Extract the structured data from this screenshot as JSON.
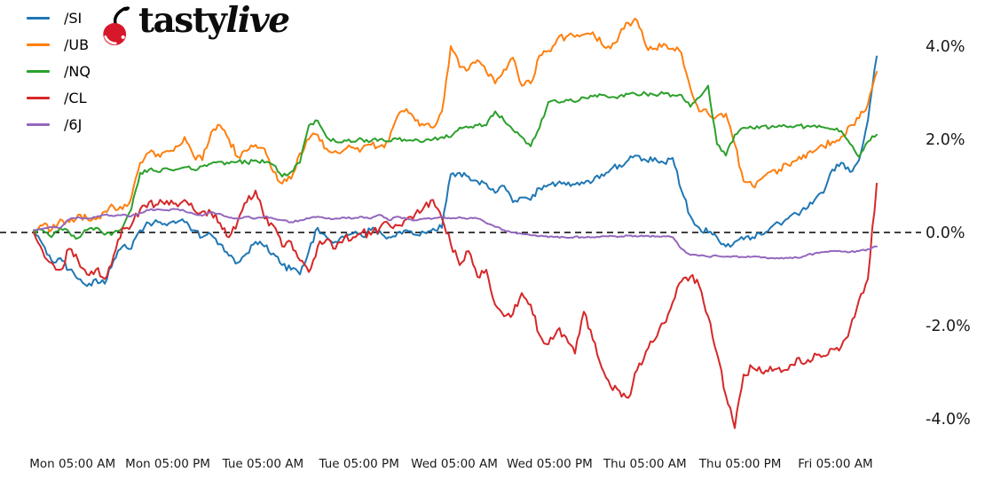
{
  "brand": {
    "logo_text_regular": "tasty",
    "logo_text_italic": "live",
    "cherry_color": "#d7182a"
  },
  "chart_data": {
    "type": "line",
    "title": "",
    "xlabel": "",
    "ylabel": "",
    "grid": false,
    "legend_position": "upper-left",
    "background": "#ffffff",
    "tick_color": "#1a1a1a",
    "zero_line": {
      "value": 0.0,
      "style": "dashed",
      "color": "#000000"
    },
    "ylim": [
      -4.6,
      4.95
    ],
    "y_ticks": [
      {
        "label": "4.0%",
        "value": 4
      },
      {
        "label": "2.0%",
        "value": 2
      },
      {
        "label": "0.0%",
        "value": 0
      },
      {
        "label": "-2.0%",
        "value": -2
      },
      {
        "label": "-4.0%",
        "value": -4
      }
    ],
    "x_ticks": [
      {
        "label": "Mon 05:00 AM",
        "pos": 0.046
      },
      {
        "label": "Mon 05:00 PM",
        "pos": 0.159
      },
      {
        "label": "Tue 05:00 AM",
        "pos": 0.272
      },
      {
        "label": "Tue 05:00 PM",
        "pos": 0.386
      },
      {
        "label": "Wed 05:00 AM",
        "pos": 0.499
      },
      {
        "label": "Wed 05:00 PM",
        "pos": 0.612
      },
      {
        "label": "Thu 05:00 AM",
        "pos": 0.725
      },
      {
        "label": "Thu 05:00 PM",
        "pos": 0.838
      },
      {
        "label": "Fri 05:00 AM",
        "pos": 0.951
      }
    ],
    "unit": "percent_change",
    "series": [
      {
        "name": "/SI",
        "color": "#1f77b4",
        "noise": 0.07,
        "values": [
          0.02,
          -0.25,
          -0.6,
          -0.55,
          -0.8,
          -1.0,
          -1.15,
          -1.0,
          -1.1,
          -0.6,
          -0.3,
          -0.35,
          0.05,
          0.2,
          0.22,
          0.15,
          0.2,
          0.22,
          0.05,
          -0.1,
          -0.05,
          -0.25,
          -0.5,
          -0.65,
          -0.45,
          -0.2,
          -0.3,
          -0.45,
          -0.7,
          -0.8,
          -0.9,
          -0.4,
          0.1,
          -0.1,
          -0.2,
          -0.1,
          -0.02,
          -0.08,
          0.05,
          0.03,
          -0.1,
          0.0,
          0.05,
          -0.05,
          0.0,
          0.08,
          0.1,
          1.25,
          1.28,
          1.2,
          1.1,
          1.05,
          0.85,
          1.0,
          0.65,
          0.75,
          0.7,
          0.95,
          1.02,
          1.05,
          1.02,
          1.03,
          1.05,
          1.1,
          1.25,
          1.35,
          1.45,
          1.55,
          1.65,
          1.55,
          1.6,
          1.5,
          1.6,
          0.9,
          0.35,
          0.1,
          0.0,
          -0.1,
          -0.3,
          -0.2,
          -0.15,
          -0.1,
          -0.05,
          0.1,
          0.2,
          0.3,
          0.4,
          0.5,
          0.7,
          0.85,
          1.35,
          1.5,
          1.3,
          1.55,
          2.4,
          3.78
        ]
      },
      {
        "name": "/UB",
        "color": "#ff7f0e",
        "noise": 0.08,
        "values": [
          0.0,
          0.15,
          0.05,
          0.28,
          0.22,
          0.38,
          0.3,
          0.28,
          0.45,
          0.55,
          0.5,
          0.75,
          1.5,
          1.72,
          1.68,
          1.75,
          1.85,
          2.05,
          1.65,
          1.55,
          2.15,
          2.3,
          2.0,
          1.62,
          1.75,
          1.88,
          1.8,
          1.3,
          1.05,
          1.15,
          1.7,
          2.0,
          2.1,
          1.8,
          1.75,
          1.78,
          1.82,
          1.8,
          1.88,
          1.85,
          1.95,
          2.5,
          2.65,
          2.4,
          2.3,
          2.25,
          2.6,
          4.0,
          3.55,
          3.5,
          3.7,
          3.45,
          3.2,
          3.5,
          3.75,
          3.15,
          3.2,
          3.8,
          3.9,
          4.15,
          4.2,
          4.2,
          4.25,
          4.3,
          4.05,
          3.95,
          4.25,
          4.5,
          4.55,
          4.0,
          3.95,
          4.05,
          3.95,
          3.85,
          3.1,
          2.6,
          2.55,
          2.5,
          2.55,
          1.9,
          1.1,
          1.0,
          1.15,
          1.3,
          1.35,
          1.45,
          1.55,
          1.6,
          1.75,
          1.85,
          1.95,
          2.05,
          2.3,
          2.45,
          2.75,
          3.45
        ]
      },
      {
        "name": "/NQ",
        "color": "#2ca02c",
        "noise": 0.045,
        "values": [
          0.02,
          0.05,
          -0.1,
          0.1,
          0.0,
          -0.12,
          0.05,
          0.1,
          -0.05,
          0.0,
          0.1,
          0.5,
          1.28,
          1.35,
          1.3,
          1.38,
          1.35,
          1.4,
          1.35,
          1.42,
          1.48,
          1.52,
          1.48,
          1.52,
          1.5,
          1.55,
          1.5,
          1.45,
          1.2,
          1.3,
          1.5,
          2.3,
          2.4,
          2.05,
          1.95,
          1.98,
          1.95,
          2.0,
          1.96,
          2.0,
          1.96,
          2.0,
          1.97,
          2.0,
          1.96,
          2.0,
          2.05,
          2.05,
          2.25,
          2.25,
          2.3,
          2.3,
          2.6,
          2.4,
          2.2,
          2.05,
          1.85,
          2.25,
          2.8,
          2.8,
          2.85,
          2.8,
          2.9,
          2.92,
          2.95,
          2.9,
          2.93,
          2.97,
          2.95,
          2.98,
          2.95,
          2.98,
          2.95,
          2.95,
          2.7,
          2.9,
          3.15,
          1.9,
          1.65,
          2.1,
          2.25,
          2.24,
          2.28,
          2.25,
          2.3,
          2.26,
          2.3,
          2.27,
          2.3,
          2.26,
          2.22,
          2.18,
          1.9,
          1.62,
          1.95,
          2.1
        ]
      },
      {
        "name": "/CL",
        "color": "#d62728",
        "noise": 0.09,
        "values": [
          0.0,
          -0.4,
          -0.65,
          -0.8,
          -0.35,
          -0.6,
          -0.9,
          -0.8,
          -1.0,
          -0.5,
          0.1,
          0.15,
          0.5,
          0.65,
          0.6,
          0.68,
          0.62,
          0.7,
          0.5,
          0.45,
          0.42,
          0.2,
          -0.1,
          0.25,
          0.65,
          0.9,
          0.3,
          0.15,
          -0.3,
          -0.2,
          -0.6,
          -0.85,
          -0.3,
          -0.15,
          -0.35,
          -0.12,
          -0.1,
          0.0,
          -0.05,
          0.1,
          0.18,
          0.15,
          0.28,
          0.4,
          0.55,
          0.7,
          0.3,
          -0.25,
          -0.7,
          -0.4,
          -0.95,
          -0.8,
          -1.55,
          -1.8,
          -1.75,
          -1.3,
          -1.55,
          -2.2,
          -2.4,
          -2.1,
          -2.25,
          -2.6,
          -1.7,
          -2.3,
          -2.9,
          -3.3,
          -3.4,
          -3.55,
          -2.95,
          -2.55,
          -2.3,
          -1.95,
          -1.5,
          -1.05,
          -0.95,
          -1.15,
          -1.8,
          -2.6,
          -3.5,
          -4.2,
          -3.05,
          -2.9,
          -3.0,
          -2.88,
          -2.9,
          -2.95,
          -2.7,
          -2.8,
          -2.6,
          -2.65,
          -2.5,
          -2.45,
          -2.05,
          -1.45,
          -1.0,
          1.05
        ]
      },
      {
        "name": "/6J",
        "color": "#9467bd",
        "noise": 0.018,
        "values": [
          0.05,
          0.08,
          0.12,
          0.1,
          0.28,
          0.33,
          0.3,
          0.33,
          0.38,
          0.35,
          0.38,
          0.35,
          0.42,
          0.48,
          0.5,
          0.48,
          0.5,
          0.46,
          0.4,
          0.36,
          0.44,
          0.4,
          0.32,
          0.3,
          0.34,
          0.3,
          0.34,
          0.3,
          0.26,
          0.22,
          0.26,
          0.3,
          0.34,
          0.3,
          0.3,
          0.32,
          0.3,
          0.34,
          0.3,
          0.38,
          0.26,
          0.34,
          0.3,
          0.26,
          0.3,
          0.3,
          0.34,
          0.3,
          0.33,
          0.3,
          0.3,
          0.2,
          0.12,
          0.05,
          0.0,
          -0.03,
          -0.06,
          -0.08,
          -0.1,
          -0.09,
          -0.11,
          -0.09,
          -0.11,
          -0.1,
          -0.08,
          -0.07,
          -0.09,
          -0.07,
          -0.09,
          -0.07,
          -0.09,
          -0.08,
          -0.1,
          -0.35,
          -0.48,
          -0.5,
          -0.52,
          -0.5,
          -0.52,
          -0.51,
          -0.53,
          -0.52,
          -0.54,
          -0.55,
          -0.56,
          -0.55,
          -0.54,
          -0.5,
          -0.45,
          -0.42,
          -0.4,
          -0.41,
          -0.42,
          -0.4,
          -0.36,
          -0.3
        ]
      }
    ]
  }
}
